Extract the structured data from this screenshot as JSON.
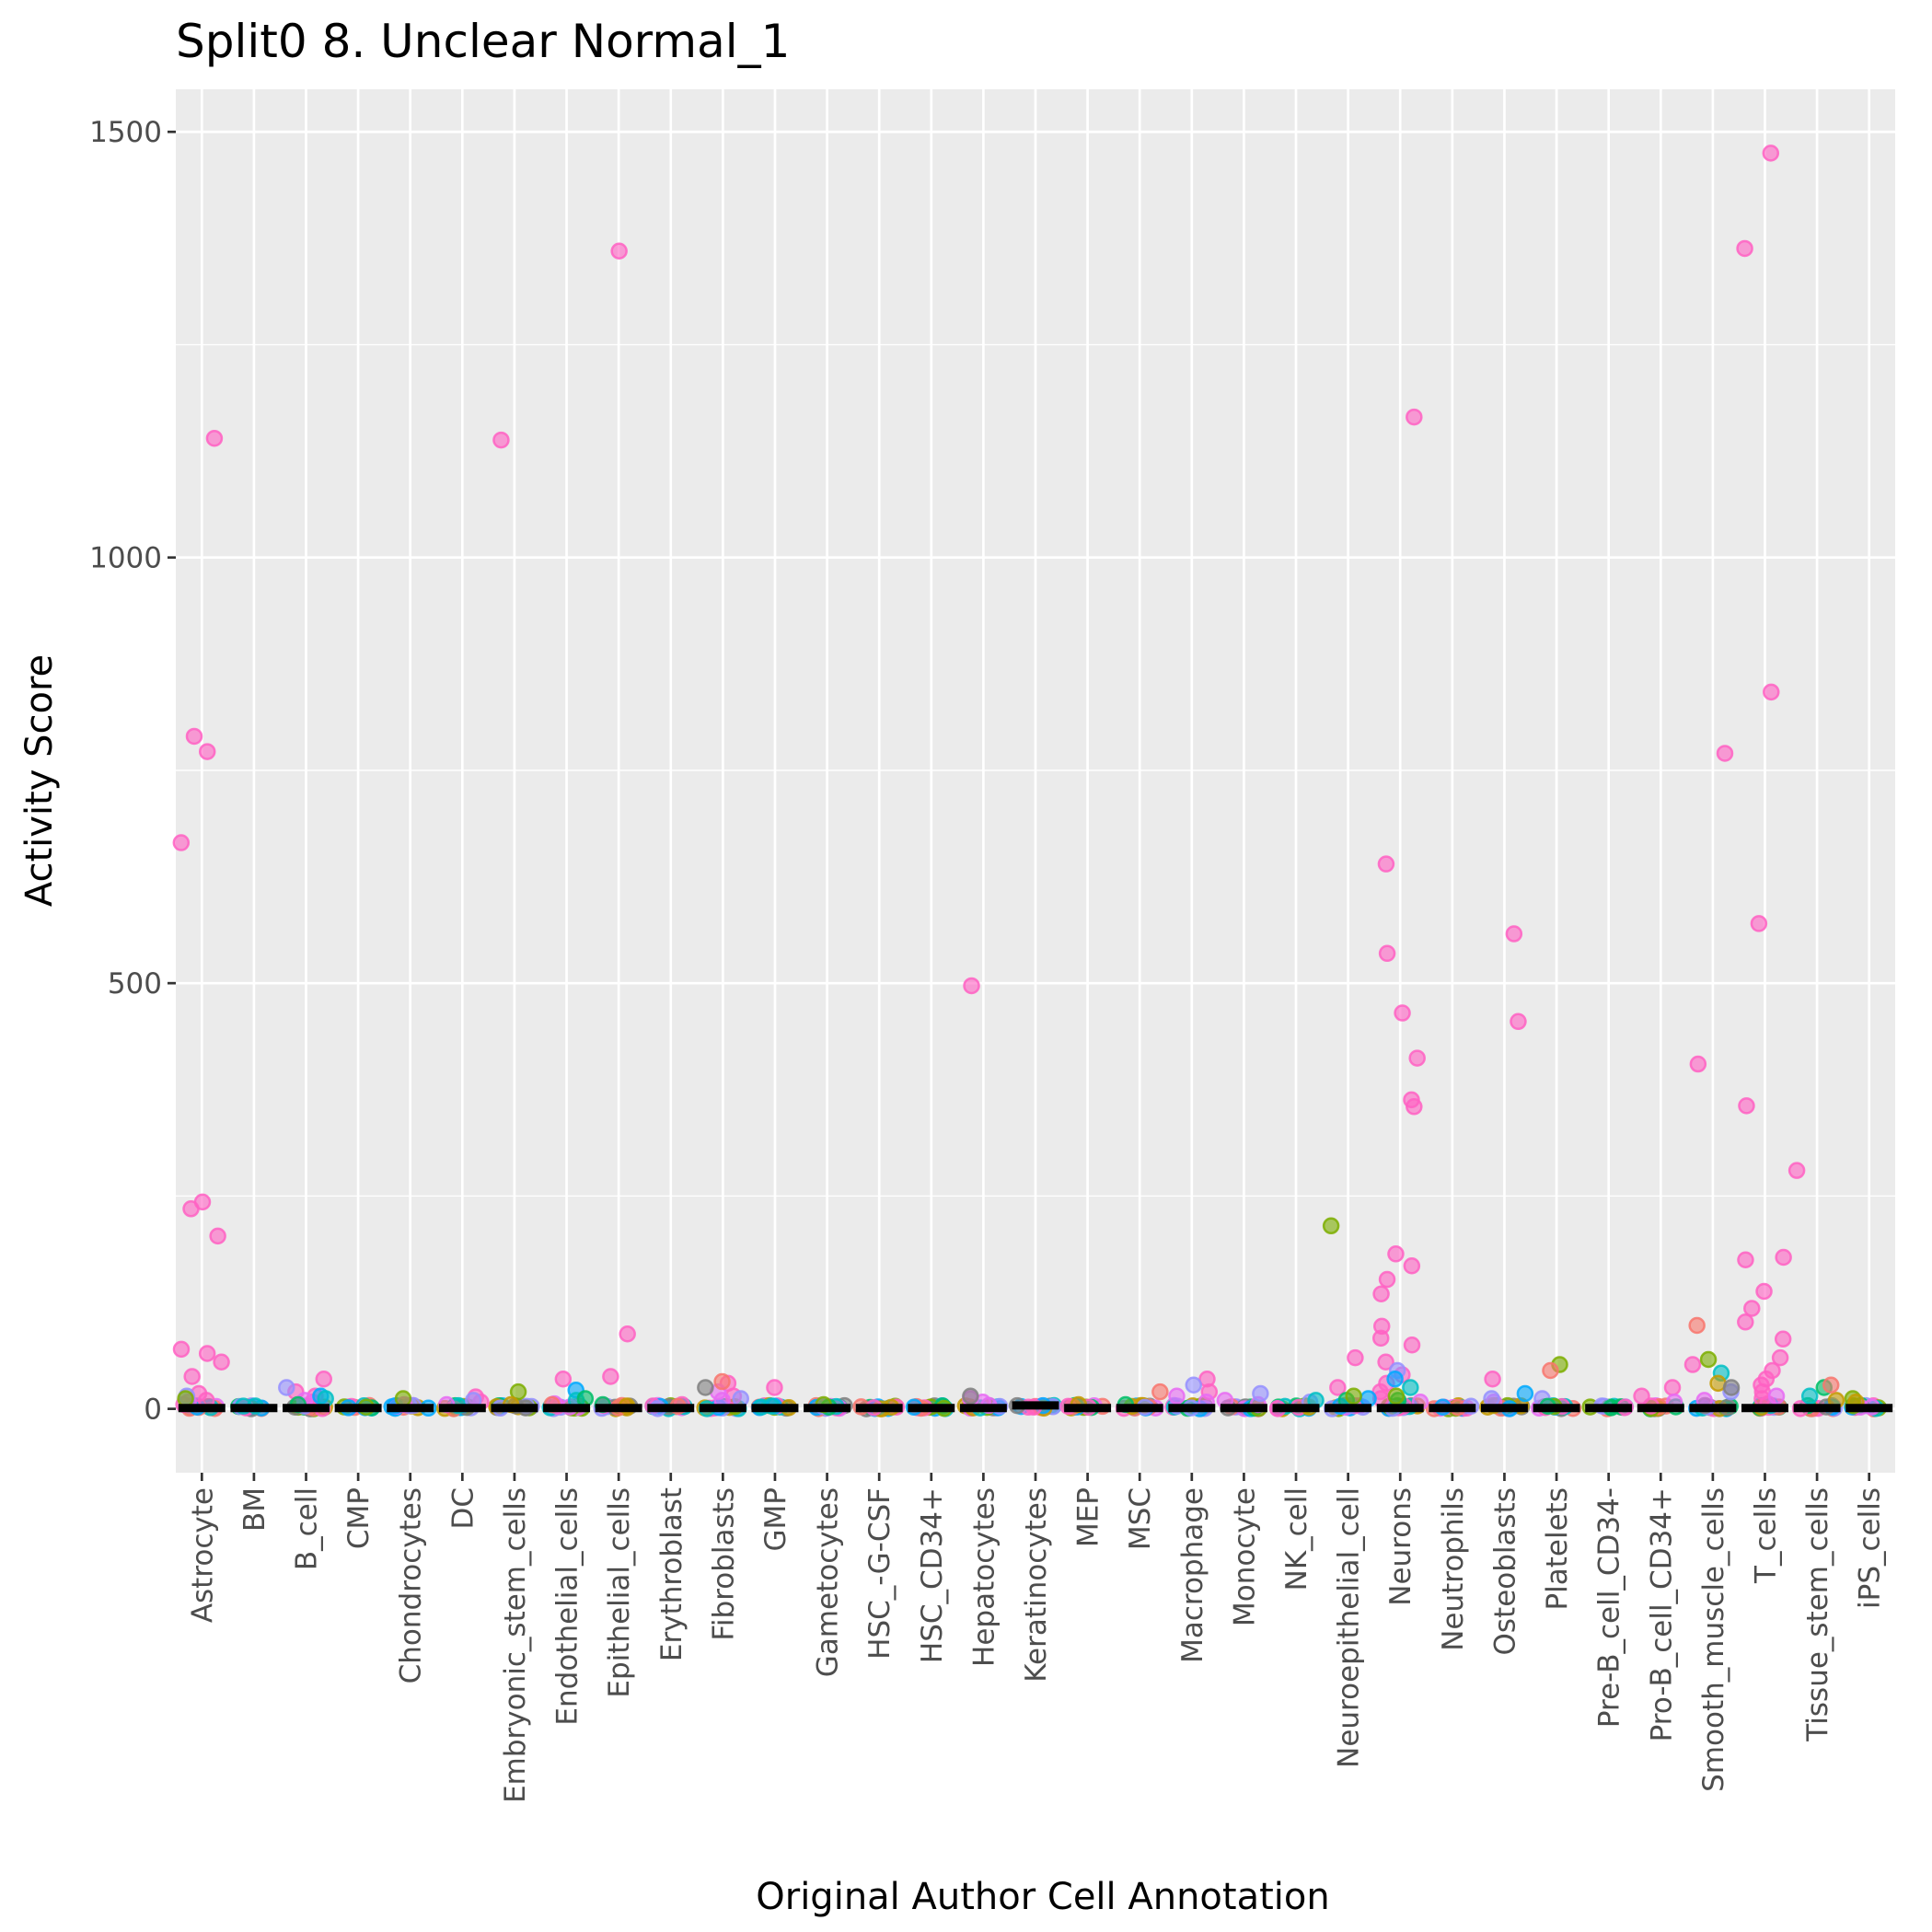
{
  "chart_data": {
    "type": "scatter",
    "subtype": "jitter-strip-with-median",
    "title": "Split0 8. Unclear Normal_1",
    "xlabel": "Original Author Cell Annotation",
    "ylabel": "Activity Score",
    "ylim": [
      -75,
      1550
    ],
    "yticks": [
      0,
      500,
      1000,
      1500
    ],
    "yticks_text": [
      "0",
      "500",
      "1000",
      "1500"
    ],
    "grid": true,
    "legend": "none",
    "categories": [
      "Astrocyte",
      "BM",
      "B_cell",
      "CMP",
      "Chondrocytes",
      "DC",
      "Embryonic_stem_cells",
      "Endothelial_cells",
      "Epithelial_cells",
      "Erythroblast",
      "Fibroblasts",
      "GMP",
      "Gametocytes",
      "HSC_-G-CSF",
      "HSC_CD34+",
      "Hepatocytes",
      "Keratinocytes",
      "MEP",
      "MSC",
      "Macrophage",
      "Monocyte",
      "NK_cell",
      "Neuroepithelial_cell",
      "Neurons",
      "Neutrophils",
      "Osteoblasts",
      "Platelets",
      "Pre-B_cell_CD34-",
      "Pro-B_cell_CD34+",
      "Smooth_muscle_cells",
      "T_cells",
      "Tissue_stem_cells",
      "iPS_cells"
    ],
    "medians": [
      1,
      1,
      1,
      1,
      1,
      1,
      1,
      1,
      1,
      1,
      1,
      1,
      1,
      1,
      1,
      1,
      4,
      1,
      1,
      1,
      1,
      1,
      1,
      1,
      1,
      1,
      1,
      1,
      1,
      1,
      1,
      1,
      1
    ],
    "series": [
      {
        "name": "pink",
        "color": "#FF61C3",
        "points": [
          [
            "Astrocyte",
            1140
          ],
          [
            "Astrocyte",
            790
          ],
          [
            "Astrocyte",
            772
          ],
          [
            "Astrocyte",
            665
          ],
          [
            "Astrocyte",
            243
          ],
          [
            "Astrocyte",
            235
          ],
          [
            "Astrocyte",
            203
          ],
          [
            "Astrocyte",
            70
          ],
          [
            "Astrocyte",
            65
          ],
          [
            "Astrocyte",
            55
          ],
          [
            "Astrocyte",
            38
          ],
          [
            "Astrocyte",
            18
          ],
          [
            "Astrocyte",
            10
          ],
          [
            "Astrocyte",
            5
          ],
          [
            "B_cell",
            35
          ],
          [
            "B_cell",
            20
          ],
          [
            "B_cell",
            15
          ],
          [
            "B_cell",
            8
          ],
          [
            "DC",
            14
          ],
          [
            "DC",
            8
          ],
          [
            "Embryonic_stem_cells",
            1138
          ],
          [
            "Endothelial_cells",
            35
          ],
          [
            "Epithelial_cells",
            1360
          ],
          [
            "Epithelial_cells",
            88
          ],
          [
            "Epithelial_cells",
            38
          ],
          [
            "Erythroblast",
            5
          ],
          [
            "Fibroblasts",
            30
          ],
          [
            "Fibroblasts",
            15
          ],
          [
            "GMP",
            25
          ],
          [
            "Hepatocytes",
            497
          ],
          [
            "Keratinocytes",
            2
          ],
          [
            "MEP",
            3
          ],
          [
            "Macrophage",
            35
          ],
          [
            "Macrophage",
            20
          ],
          [
            "Neuroepithelial_cell",
            60
          ],
          [
            "Neuroepithelial_cell",
            25
          ],
          [
            "Neurons",
            1165
          ],
          [
            "Neurons",
            640
          ],
          [
            "Neurons",
            535
          ],
          [
            "Neurons",
            465
          ],
          [
            "Neurons",
            412
          ],
          [
            "Neurons",
            363
          ],
          [
            "Neurons",
            355
          ],
          [
            "Neurons",
            182
          ],
          [
            "Neurons",
            168
          ],
          [
            "Neurons",
            152
          ],
          [
            "Neurons",
            135
          ],
          [
            "Neurons",
            97
          ],
          [
            "Neurons",
            83
          ],
          [
            "Neurons",
            75
          ],
          [
            "Neurons",
            55
          ],
          [
            "Neurons",
            40
          ],
          [
            "Neurons",
            30
          ],
          [
            "Neurons",
            20
          ],
          [
            "Neurons",
            12
          ],
          [
            "Osteoblasts",
            558
          ],
          [
            "Osteoblasts",
            455
          ],
          [
            "Osteoblasts",
            35
          ],
          [
            "Pre-B_cell_CD34-",
            2
          ],
          [
            "Pro-B_cell_CD34+",
            25
          ],
          [
            "Pro-B_cell_CD34+",
            15
          ],
          [
            "Smooth_muscle_cells",
            770
          ],
          [
            "Smooth_muscle_cells",
            405
          ],
          [
            "Smooth_muscle_cells",
            52
          ],
          [
            "T_cells",
            1475
          ],
          [
            "T_cells",
            1363
          ],
          [
            "T_cells",
            842
          ],
          [
            "T_cells",
            570
          ],
          [
            "T_cells",
            356
          ],
          [
            "T_cells",
            178
          ],
          [
            "T_cells",
            175
          ],
          [
            "T_cells",
            138
          ],
          [
            "T_cells",
            118
          ],
          [
            "T_cells",
            102
          ],
          [
            "T_cells",
            82
          ],
          [
            "T_cells",
            60
          ],
          [
            "T_cells",
            45
          ],
          [
            "T_cells",
            35
          ],
          [
            "T_cells",
            28
          ],
          [
            "T_cells",
            20
          ],
          [
            "T_cells",
            12
          ],
          [
            "T_cells",
            6
          ],
          [
            "Tissue_stem_cells",
            280
          ]
        ]
      },
      {
        "name": "magenta",
        "color": "#E76BF3",
        "points": [
          [
            "Astrocyte",
            8
          ],
          [
            "B_cell",
            10
          ],
          [
            "Chondrocytes",
            5
          ],
          [
            "DC",
            5
          ],
          [
            "Endothelial_cells",
            6
          ],
          [
            "Fibroblasts",
            20
          ],
          [
            "Fibroblasts",
            10
          ],
          [
            "Hepatocytes",
            12
          ],
          [
            "Hepatocytes",
            8
          ],
          [
            "Hepatocytes",
            4
          ],
          [
            "Macrophage",
            15
          ],
          [
            "Macrophage",
            8
          ],
          [
            "Monocyte",
            10
          ],
          [
            "Monocyte",
            5
          ],
          [
            "Neurons",
            8
          ],
          [
            "Osteoblasts",
            8
          ],
          [
            "Pro-B_cell_CD34+",
            8
          ],
          [
            "Smooth_muscle_cells",
            10
          ],
          [
            "T_cells",
            15
          ]
        ]
      },
      {
        "name": "violet",
        "color": "#9590FF",
        "points": [
          [
            "Astrocyte",
            15
          ],
          [
            "B_cell",
            25
          ],
          [
            "DC",
            10
          ],
          [
            "Fibroblasts",
            12
          ],
          [
            "Macrophage",
            28
          ],
          [
            "Monocyte",
            18
          ],
          [
            "NK_cell",
            8
          ],
          [
            "Neurons",
            45
          ],
          [
            "Osteoblasts",
            12
          ],
          [
            "Platelets",
            12
          ],
          [
            "Smooth_muscle_cells",
            20
          ]
        ]
      },
      {
        "name": "blue",
        "color": "#00A9FF",
        "points": [
          [
            "B_cell",
            15
          ],
          [
            "Endothelial_cells",
            22
          ],
          [
            "HSC_CD34+",
            2
          ],
          [
            "Neuroepithelial_cell",
            12
          ],
          [
            "Neurons",
            35
          ],
          [
            "Neutrophils",
            2
          ],
          [
            "Osteoblasts",
            18
          ]
        ]
      },
      {
        "name": "teal",
        "color": "#00BFC4",
        "points": [
          [
            "B_cell",
            12
          ],
          [
            "Endothelial_cells",
            10
          ],
          [
            "NK_cell",
            10
          ],
          [
            "Neurons",
            25
          ],
          [
            "Smooth_muscle_cells",
            42
          ],
          [
            "Tissue_stem_cells",
            15
          ]
        ]
      },
      {
        "name": "green",
        "color": "#00BE67",
        "points": [
          [
            "B_cell",
            5
          ],
          [
            "Endothelial_cells",
            12
          ],
          [
            "Epithelial_cells",
            5
          ],
          [
            "Gametocytes",
            2
          ],
          [
            "MSC",
            5
          ],
          [
            "Neuroepithelial_cell",
            10
          ],
          [
            "Neurons",
            10
          ],
          [
            "Platelets",
            3
          ],
          [
            "Tissue_stem_cells",
            25
          ]
        ]
      },
      {
        "name": "olive",
        "color": "#7CAE00",
        "points": [
          [
            "Astrocyte",
            12
          ],
          [
            "CMP",
            2
          ],
          [
            "Chondrocytes",
            12
          ],
          [
            "Embryonic_stem_cells",
            20
          ],
          [
            "Gametocytes",
            5
          ],
          [
            "Neuroepithelial_cell",
            215
          ],
          [
            "Neuroepithelial_cell",
            15
          ],
          [
            "Neurons",
            15
          ],
          [
            "Platelets",
            52
          ],
          [
            "Smooth_muscle_cells",
            58
          ],
          [
            "iPS_cells",
            12
          ]
        ]
      },
      {
        "name": "ochre",
        "color": "#C49A00",
        "points": [
          [
            "Embryonic_stem_cells",
            5
          ],
          [
            "MEP",
            5
          ],
          [
            "Smooth_muscle_cells",
            30
          ],
          [
            "Tissue_stem_cells",
            10
          ],
          [
            "iPS_cells",
            8
          ]
        ]
      },
      {
        "name": "salmon",
        "color": "#F8766D",
        "points": [
          [
            "Endothelial_cells",
            5
          ],
          [
            "Erythroblast",
            3
          ],
          [
            "Fibroblasts",
            32
          ],
          [
            "MSC",
            20
          ],
          [
            "Platelets",
            45
          ],
          [
            "Smooth_muscle_cells",
            98
          ],
          [
            "Tissue_stem_cells",
            28
          ]
        ]
      },
      {
        "name": "gray",
        "color": "#808080",
        "points": [
          [
            "Fibroblasts",
            25
          ],
          [
            "Hepatocytes",
            15
          ],
          [
            "Smooth_muscle_cells",
            25
          ]
        ]
      }
    ]
  }
}
